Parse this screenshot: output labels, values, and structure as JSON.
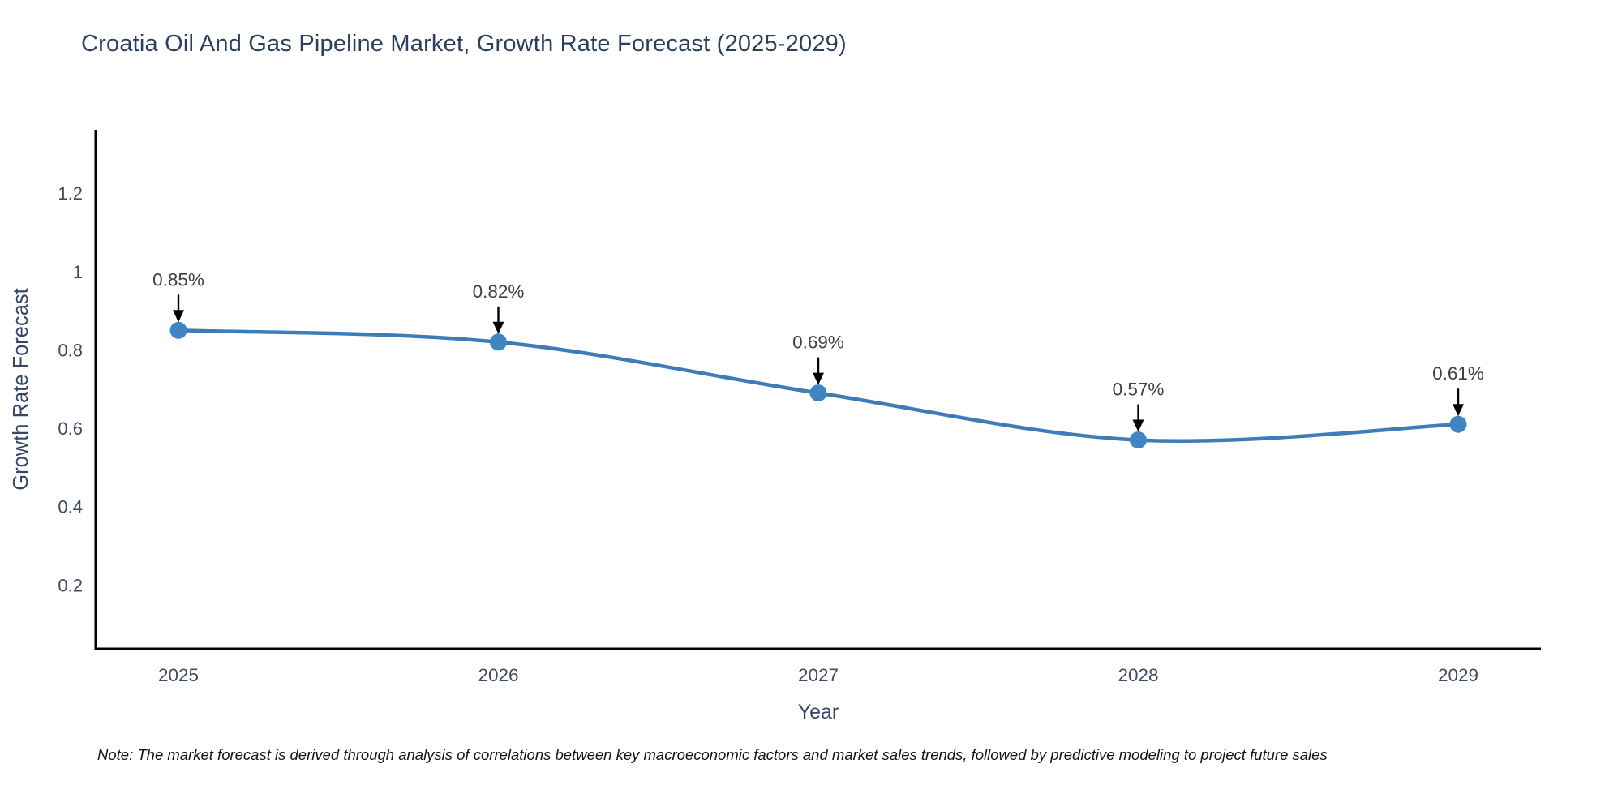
{
  "title": "Croatia Oil And Gas Pipeline Market, Growth Rate Forecast (2025-2029)",
  "note": "Note: The market forecast is derived through analysis of correlations between key macroeconomic factors and market sales trends, followed by predictive modeling to project future sales",
  "chart_data": {
    "type": "line",
    "line_shape": "spline",
    "x": [
      "2025",
      "2026",
      "2027",
      "2028",
      "2029"
    ],
    "values": [
      0.85,
      0.82,
      0.69,
      0.57,
      0.61
    ],
    "point_labels": [
      "0.85%",
      "0.82%",
      "0.69%",
      "0.57%",
      "0.61%"
    ],
    "xlabel": "Year",
    "ylabel": "Growth Rate Forecast",
    "yticks": [
      0.2,
      0.4,
      0.6,
      0.8,
      1,
      1.2
    ],
    "ytick_labels": [
      "0.2",
      "0.4",
      "0.6",
      "0.8",
      "1",
      "1.2"
    ],
    "ylim": [
      0.037,
      1.362
    ],
    "grid": false,
    "legend": "none",
    "colors": {
      "line": "#3e7cb9",
      "marker": "#4084c1",
      "arrow": "#000000",
      "axis": "#000000",
      "title_text": "#2b3f5e",
      "tick_text": "#3f4c63",
      "axis_title_text": "#344863",
      "point_label_text": "#3c4148"
    }
  }
}
